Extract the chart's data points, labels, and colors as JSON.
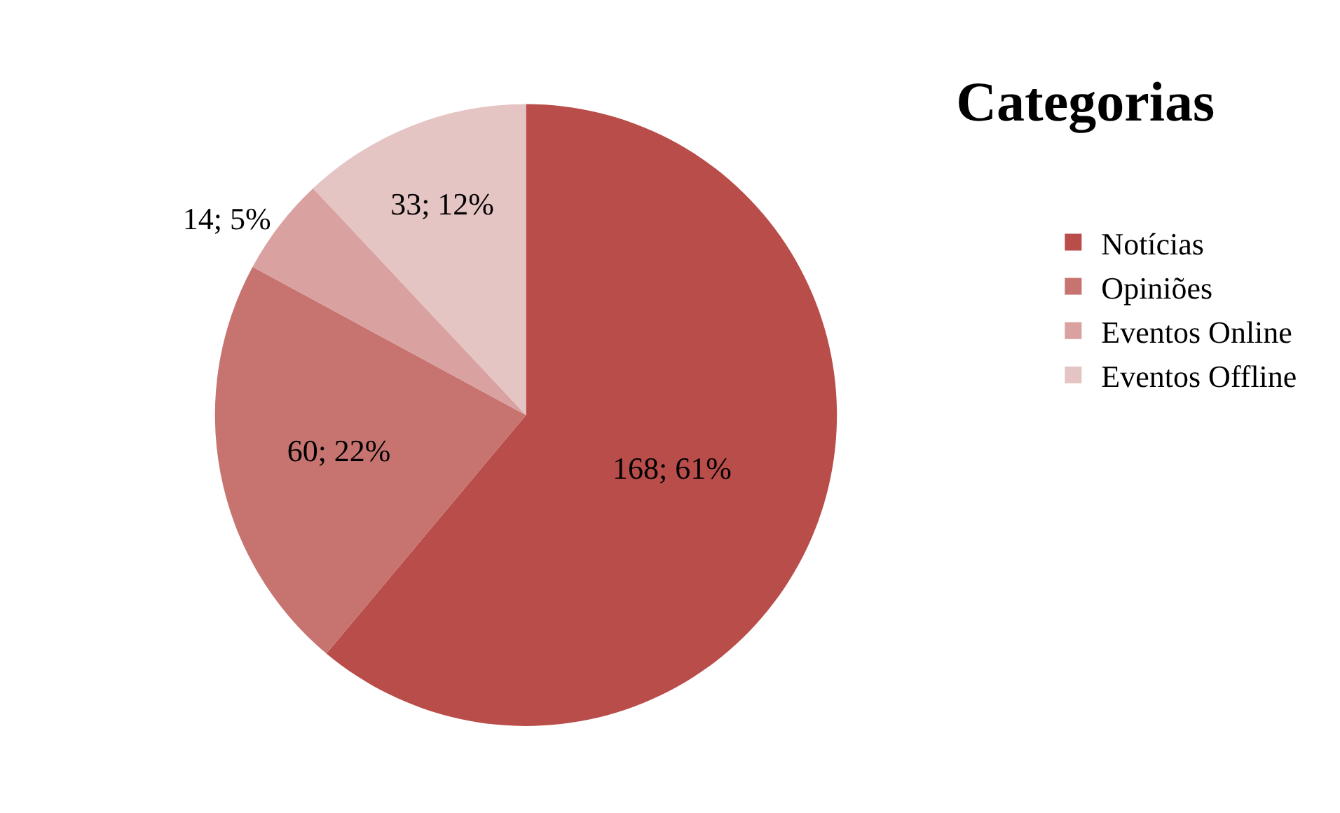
{
  "chart_data": {
    "type": "pie",
    "title": "Categorias",
    "categories": [
      "Notícias",
      "Opiniões",
      "Eventos Online",
      "Eventos Offline"
    ],
    "values": [
      168,
      60,
      14,
      33
    ],
    "value_labels": [
      "168; 61%",
      "60; 22%",
      "14; 5%",
      "33; 12%"
    ],
    "colors": [
      "#b94d4a",
      "#c77370",
      "#d9a19f",
      "#e5c4c4"
    ],
    "legend": "right"
  }
}
